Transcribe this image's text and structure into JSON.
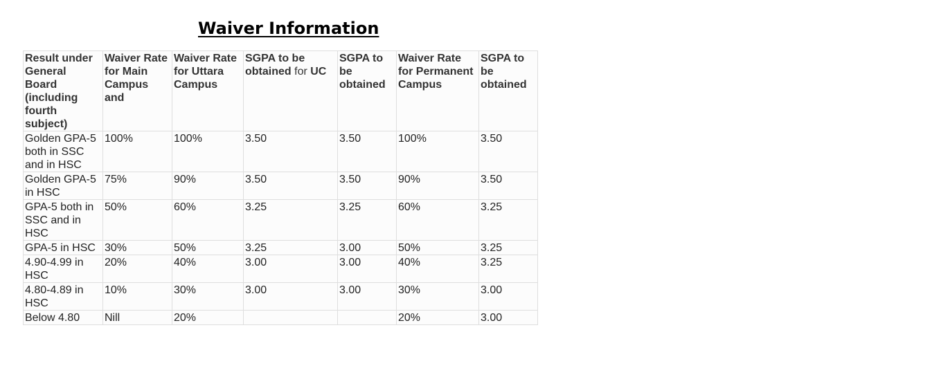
{
  "title": "Waiver Information",
  "table": {
    "headers": [
      "Result under General Board (including fourth subject)",
      "Waiver Rate for Main Campus and",
      "Waiver Rate for Uttara Campus",
      "SGPA to be obtained",
      "SGPA to be obtained",
      "Waiver Rate for Permanent Campus",
      "SGPA to be obtained"
    ],
    "header_sgpa_uc_for": "for",
    "header_sgpa_uc_uc": "UC",
    "rows": [
      [
        "Golden GPA-5 both in SSC and in HSC",
        "100%",
        "100%",
        "3.50",
        "3.50",
        "100%",
        "3.50"
      ],
      [
        "Golden GPA-5 in HSC",
        "75%",
        "90%",
        "3.50",
        "3.50",
        "90%",
        "3.50"
      ],
      [
        "GPA-5 both in SSC and in HSC",
        "50%",
        "60%",
        "3.25",
        "3.25",
        "60%",
        "3.25"
      ],
      [
        "GPA-5 in HSC",
        "30%",
        "50%",
        "3.25",
        "3.00",
        "50%",
        "3.25"
      ],
      [
        "4.90-4.99 in HSC",
        "20%",
        "40%",
        "3.00",
        "3.00",
        "40%",
        "3.25"
      ],
      [
        "4.80-4.89 in HSC",
        "10%",
        "30%",
        "3.00",
        "3.00",
        "30%",
        "3.00"
      ],
      [
        "Below 4.80",
        "Nill",
        "20%",
        "",
        "",
        "20%",
        "3.00"
      ]
    ]
  }
}
